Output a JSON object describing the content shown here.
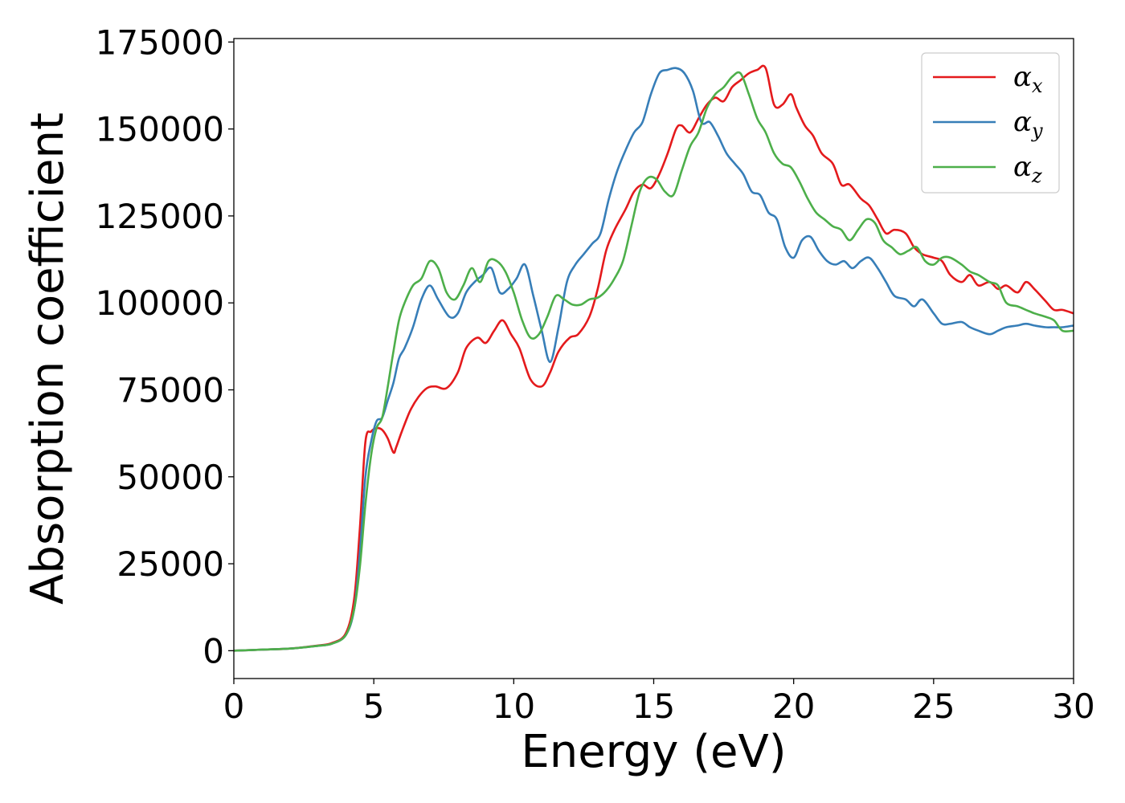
{
  "chart_data": {
    "type": "line",
    "xlabel": "Energy (eV)",
    "ylabel": "Absorption coefficient",
    "xlim": [
      0,
      30
    ],
    "ylim": [
      -8000,
      176000
    ],
    "x_ticks": [
      0,
      5,
      10,
      15,
      20,
      25,
      30
    ],
    "y_ticks": [
      0,
      25000,
      50000,
      75000,
      100000,
      125000,
      150000,
      175000
    ],
    "grid": false,
    "legend_position": "top-right",
    "series": [
      {
        "name": "α_x",
        "symbol": "α",
        "subscript": "x",
        "color": "#e41a1c",
        "x": [
          0,
          1,
          2,
          3,
          3.5,
          4,
          4.3,
          4.5,
          4.7,
          4.9,
          5.1,
          5.3,
          5.5,
          5.7,
          5.8,
          6.0,
          6.3,
          6.6,
          6.9,
          7.2,
          7.6,
          8.0,
          8.3,
          8.7,
          9.0,
          9.3,
          9.6,
          9.9,
          10.2,
          10.6,
          11.0,
          11.3,
          11.6,
          12.0,
          12.3,
          12.7,
          13.0,
          13.3,
          13.6,
          14.0,
          14.3,
          14.6,
          14.9,
          15.2,
          15.5,
          15.8,
          16.0,
          16.3,
          16.6,
          16.9,
          17.2,
          17.5,
          17.8,
          18.1,
          18.4,
          18.7,
          19.0,
          19.3,
          19.6,
          19.9,
          20.1,
          20.4,
          20.7,
          21.0,
          21.4,
          21.7,
          22.0,
          22.4,
          22.7,
          23.0,
          23.3,
          23.6,
          24.0,
          24.3,
          24.6,
          25.0,
          25.3,
          25.6,
          26.0,
          26.3,
          26.6,
          27.0,
          27.3,
          27.6,
          28.0,
          28.3,
          28.6,
          29.0,
          29.3,
          29.6,
          30.0
        ],
        "values": [
          0,
          300,
          600,
          1500,
          2200,
          5000,
          15000,
          35000,
          60000,
          63000,
          64000,
          63500,
          61000,
          57000,
          58500,
          63000,
          69000,
          73000,
          75500,
          76000,
          75500,
          80000,
          87000,
          90000,
          88500,
          92000,
          95000,
          91000,
          87000,
          78000,
          76000,
          80000,
          86000,
          90000,
          91000,
          96000,
          104000,
          115000,
          121000,
          127000,
          132000,
          134000,
          133000,
          137000,
          143000,
          150000,
          151000,
          149000,
          153000,
          157000,
          159000,
          158000,
          162000,
          164000,
          166000,
          167000,
          167500,
          157000,
          157000,
          160000,
          156000,
          151000,
          148000,
          143000,
          140000,
          134000,
          134000,
          130000,
          128000,
          124000,
          120000,
          121000,
          120000,
          116000,
          114000,
          113000,
          112000,
          108000,
          106000,
          108000,
          105000,
          106000,
          104000,
          105000,
          103000,
          106000,
          104000,
          100500,
          98000,
          98000,
          97000
        ]
      },
      {
        "name": "α_y",
        "symbol": "α",
        "subscript": "y",
        "color": "#377eb8",
        "x": [
          0,
          1,
          2,
          3,
          3.5,
          4,
          4.3,
          4.5,
          4.7,
          4.9,
          5.1,
          5.3,
          5.5,
          5.7,
          5.9,
          6.1,
          6.4,
          6.7,
          7.0,
          7.3,
          7.7,
          8.0,
          8.3,
          8.6,
          8.9,
          9.2,
          9.5,
          9.8,
          10.1,
          10.4,
          10.7,
          11.0,
          11.3,
          11.6,
          11.9,
          12.2,
          12.5,
          12.8,
          13.1,
          13.4,
          13.7,
          14.0,
          14.3,
          14.6,
          14.9,
          15.2,
          15.5,
          15.8,
          16.1,
          16.4,
          16.7,
          17.0,
          17.3,
          17.6,
          17.9,
          18.2,
          18.5,
          18.8,
          19.1,
          19.4,
          19.7,
          20.0,
          20.3,
          20.6,
          20.9,
          21.2,
          21.5,
          21.8,
          22.1,
          22.4,
          22.7,
          23.0,
          23.3,
          23.6,
          24.0,
          24.3,
          24.6,
          25.0,
          25.3,
          25.6,
          26.0,
          26.3,
          26.6,
          27.0,
          27.3,
          27.6,
          28.0,
          28.3,
          28.6,
          29.0,
          29.3,
          29.6,
          30.0
        ],
        "values": [
          0,
          300,
          600,
          1400,
          2000,
          4500,
          12000,
          28000,
          50000,
          60000,
          66000,
          67000,
          72000,
          77000,
          84000,
          87000,
          93000,
          101000,
          105000,
          101000,
          96000,
          97000,
          103000,
          106000,
          108000,
          110000,
          103000,
          104000,
          107000,
          111000,
          102000,
          92000,
          83000,
          93000,
          106000,
          111000,
          114000,
          117000,
          120000,
          130000,
          138000,
          144000,
          149000,
          152000,
          160000,
          166000,
          167000,
          167500,
          166000,
          161000,
          152000,
          152000,
          148000,
          143000,
          140000,
          137000,
          132000,
          131000,
          126000,
          124000,
          116000,
          113000,
          118000,
          119000,
          115000,
          112000,
          111000,
          112000,
          110000,
          112000,
          113000,
          110000,
          106000,
          102000,
          101000,
          99000,
          101000,
          97000,
          94000,
          94000,
          94500,
          93000,
          92000,
          91000,
          92000,
          93000,
          93500,
          94000,
          93500,
          93000,
          93000,
          93000,
          93500
        ]
      },
      {
        "name": "α_z",
        "symbol": "α",
        "subscript": "z",
        "color": "#4daf4a",
        "x": [
          0,
          1,
          2,
          3,
          3.5,
          4,
          4.3,
          4.5,
          4.7,
          4.9,
          5.1,
          5.3,
          5.5,
          5.7,
          5.9,
          6.1,
          6.4,
          6.7,
          7.0,
          7.3,
          7.6,
          7.9,
          8.2,
          8.5,
          8.8,
          9.1,
          9.4,
          9.7,
          10.0,
          10.3,
          10.6,
          10.9,
          11.2,
          11.5,
          11.8,
          12.1,
          12.4,
          12.7,
          13.0,
          13.3,
          13.6,
          13.9,
          14.2,
          14.5,
          14.8,
          15.1,
          15.4,
          15.7,
          16.0,
          16.3,
          16.6,
          16.9,
          17.2,
          17.5,
          17.8,
          18.1,
          18.4,
          18.7,
          19.0,
          19.3,
          19.6,
          19.9,
          20.2,
          20.5,
          20.8,
          21.1,
          21.4,
          21.7,
          22.0,
          22.3,
          22.6,
          22.9,
          23.2,
          23.5,
          23.8,
          24.1,
          24.4,
          24.7,
          25.0,
          25.3,
          25.6,
          26.0,
          26.3,
          26.6,
          27.0,
          27.3,
          27.6,
          28.0,
          28.3,
          28.6,
          29.0,
          29.3,
          29.6,
          30.0
        ],
        "values": [
          0,
          300,
          600,
          1400,
          2000,
          4500,
          12000,
          24000,
          42000,
          56000,
          64000,
          67000,
          76000,
          86000,
          95000,
          100000,
          105000,
          107000,
          112000,
          110000,
          103000,
          101000,
          105000,
          110000,
          106000,
          112000,
          112000,
          109000,
          103000,
          95000,
          90000,
          91000,
          96000,
          102000,
          101000,
          99500,
          99500,
          101000,
          101500,
          103500,
          107000,
          112000,
          122000,
          132000,
          136000,
          135500,
          132000,
          131000,
          138000,
          145000,
          149000,
          156000,
          160000,
          162000,
          165000,
          166000,
          160000,
          153000,
          149000,
          143000,
          140000,
          139000,
          135000,
          130000,
          126000,
          124000,
          122000,
          121000,
          118000,
          121000,
          124000,
          123000,
          118000,
          116000,
          114000,
          115000,
          116000,
          112000,
          111000,
          113000,
          113000,
          111000,
          109000,
          108000,
          106000,
          105000,
          100000,
          99000,
          98000,
          97000,
          96000,
          95000,
          92000,
          92000
        ]
      }
    ]
  }
}
